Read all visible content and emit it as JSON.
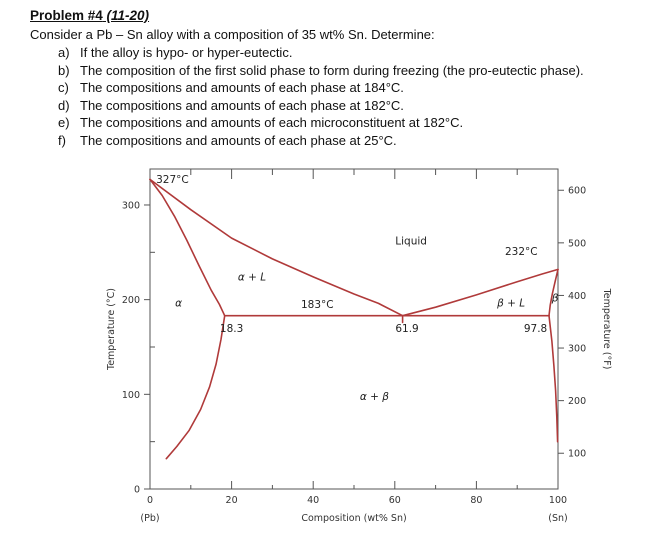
{
  "problem": {
    "title_bold": "Problem #4",
    "title_italic": " (11-20)",
    "intro": "Consider a Pb – Sn alloy with a composition of 35 wt% Sn. Determine:",
    "items": [
      {
        "label": "a)",
        "text": "If the alloy is hypo- or hyper-eutectic."
      },
      {
        "label": "b)",
        "text": "The composition of the first solid phase to form during freezing (the pro-eutectic phase)."
      },
      {
        "label": "c)",
        "text": "The compositions and amounts of each phase at 184°C."
      },
      {
        "label": "d)",
        "text": "The compositions and amounts of each phase at 182°C."
      },
      {
        "label": "e)",
        "text": "The compositions and amounts of each microconstituent at 182°C."
      },
      {
        "label": "f)",
        "text": "The compositions and amounts of each phase at 25°C."
      }
    ]
  },
  "chart_data": {
    "type": "line",
    "description": "Pb–Sn binary eutectic phase diagram",
    "xlabel": "Composition (wt% Sn)",
    "x_left_label": "(Pb)",
    "x_right_label": "(Sn)",
    "ylabel_left": "Temperature (°C)",
    "ylabel_right": "Temperature (°F)",
    "xlim": [
      0,
      100
    ],
    "ylim_c": [
      0,
      338
    ],
    "x_ticks": [
      0,
      20,
      40,
      60,
      80,
      100
    ],
    "x_minor_ticks": [
      10,
      30,
      50,
      70,
      90
    ],
    "y_ticks_c": [
      0,
      100,
      200,
      300
    ],
    "y_minor_ticks_c": [
      50,
      150,
      250
    ],
    "y_ticks_f": [
      100,
      200,
      300,
      400,
      500,
      600
    ],
    "key_points": {
      "pure_pb_melting_c": 327,
      "pure_sn_melting_c": 232,
      "eutectic_temp_c": 183,
      "alpha_max_solubility_wt_sn": 18.3,
      "eutectic_composition_wt_sn": 61.9,
      "beta_min_wt_sn": 97.8
    },
    "line_color": "#b03a3a",
    "series": [
      {
        "name": "liquidus-left",
        "points": [
          [
            0,
            327
          ],
          [
            10,
            295
          ],
          [
            20,
            265
          ],
          [
            30,
            243
          ],
          [
            40,
            224
          ],
          [
            50,
            206
          ],
          [
            56,
            196
          ],
          [
            61.9,
            183
          ]
        ]
      },
      {
        "name": "liquidus-right",
        "points": [
          [
            61.9,
            183
          ],
          [
            70,
            192
          ],
          [
            80,
            205
          ],
          [
            90,
            219
          ],
          [
            96,
            227
          ],
          [
            100,
            232
          ]
        ]
      },
      {
        "name": "solidus-alpha",
        "points": [
          [
            0,
            327
          ],
          [
            3,
            310
          ],
          [
            6,
            288
          ],
          [
            9,
            263
          ],
          [
            12,
            236
          ],
          [
            15,
            210
          ],
          [
            17,
            195
          ],
          [
            18.3,
            183
          ]
        ]
      },
      {
        "name": "solvus-alpha",
        "points": [
          [
            18.3,
            183
          ],
          [
            17.4,
            158
          ],
          [
            16.2,
            132
          ],
          [
            14.6,
            108
          ],
          [
            12.4,
            84
          ],
          [
            9.6,
            62
          ],
          [
            6.6,
            45
          ],
          [
            4,
            32
          ]
        ]
      },
      {
        "name": "solidus-beta",
        "points": [
          [
            100,
            232
          ],
          [
            99.3,
            219
          ],
          [
            98.6,
            206
          ],
          [
            98.1,
            194
          ],
          [
            97.8,
            183
          ]
        ]
      },
      {
        "name": "solvus-beta",
        "points": [
          [
            97.8,
            183
          ],
          [
            98.5,
            156
          ],
          [
            99,
            130
          ],
          [
            99.4,
            104
          ],
          [
            99.7,
            76
          ],
          [
            99.9,
            50
          ]
        ]
      },
      {
        "name": "eutectic-isotherm",
        "points": [
          [
            18.3,
            183
          ],
          [
            97.8,
            183
          ]
        ]
      },
      {
        "name": "eutectic-tick",
        "points": [
          [
            61.9,
            183
          ],
          [
            61.9,
            176
          ]
        ]
      }
    ],
    "annotations": [
      {
        "name": "label-327c",
        "text": "327°C",
        "x": 1.5,
        "t": 323,
        "anchor": "start",
        "italic": false
      },
      {
        "name": "label-232c",
        "text": "232°C",
        "x": 91,
        "t": 247,
        "anchor": "middle",
        "italic": false
      },
      {
        "name": "label-183c",
        "text": "183°C",
        "x": 41,
        "t": 191,
        "anchor": "middle",
        "italic": false
      },
      {
        "name": "label-18-3",
        "text": "18.3",
        "x": 20,
        "t": 166,
        "anchor": "middle",
        "italic": false
      },
      {
        "name": "label-61-9",
        "text": "61.9",
        "x": 63,
        "t": 166,
        "anchor": "middle",
        "italic": false
      },
      {
        "name": "label-97-8",
        "text": "97.8",
        "x": 94.5,
        "t": 166,
        "anchor": "middle",
        "italic": false
      },
      {
        "name": "region-liquid",
        "text": "Liquid",
        "x": 64,
        "t": 258,
        "anchor": "middle",
        "italic": false
      },
      {
        "name": "region-alpha-plus-l",
        "text": "α + L",
        "x": 25,
        "t": 220,
        "anchor": "middle",
        "italic": true
      },
      {
        "name": "region-alpha",
        "text": "α",
        "x": 7,
        "t": 193,
        "anchor": "middle",
        "italic": true
      },
      {
        "name": "region-beta-plus-l",
        "text": "β + L",
        "x": 88.5,
        "t": 193,
        "anchor": "middle",
        "italic": true
      },
      {
        "name": "region-beta",
        "text": "β",
        "x": 99.3,
        "t": 198,
        "anchor": "middle",
        "italic": true
      },
      {
        "name": "region-alpha-plus-beta",
        "text": "α + β",
        "x": 55,
        "t": 94,
        "anchor": "middle",
        "italic": true
      }
    ]
  }
}
